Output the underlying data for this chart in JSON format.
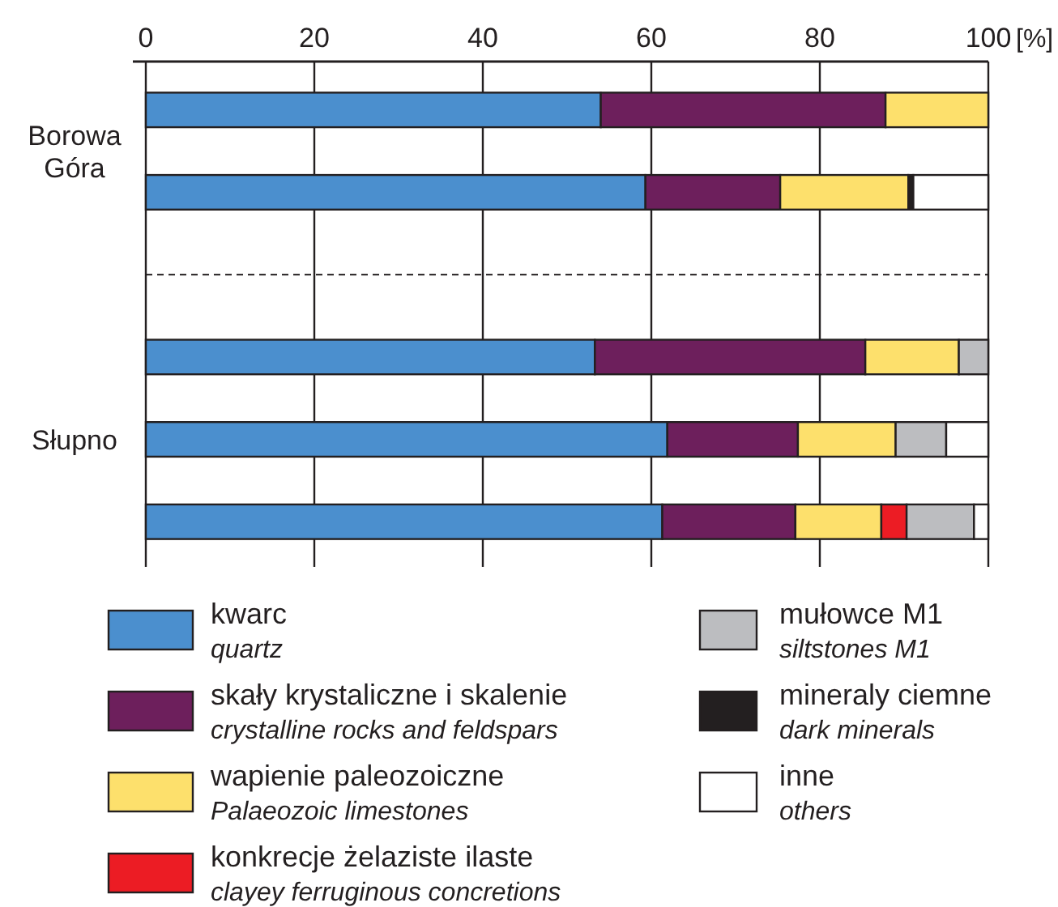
{
  "chart_data": {
    "type": "bar",
    "orientation": "horizontal",
    "stacked": true,
    "xlabel": "[%]",
    "xlim": [
      0,
      100
    ],
    "xticks": [
      0,
      20,
      40,
      60,
      80,
      100
    ],
    "grid": "x",
    "legend": "bottom",
    "categories": [
      null,
      null,
      null,
      null,
      null,
      null
    ],
    "annotations": [
      "Borowa\nGóra",
      "Słupno"
    ],
    "series": [
      {
        "name": "kwarc\nquartz",
        "color": "#4b8fce",
        "values": [
          54,
          59.3,
          null,
          53.3,
          61.9,
          61.3
        ]
      },
      {
        "name": "skały krystaliczne i skalenie\ncrystalline rocks and feldspars",
        "color": "#6d1f5c",
        "values": [
          33.8,
          16,
          null,
          32.1,
          15.5,
          15.8
        ]
      },
      {
        "name": "wapienie paleozoiczne\nPalaeozoic limestones",
        "color": "#fde06c",
        "values": [
          12.2,
          15.2,
          null,
          11.1,
          11.6,
          10.2
        ]
      },
      {
        "name": "konkrecje żelaziste ilaste\nclayey ferruginous concretions",
        "color": "#ec1c24",
        "values": [
          0,
          0,
          null,
          0,
          0,
          3
        ]
      },
      {
        "name": "mułowce M1\nsiltstones M1",
        "color": "#bcbdc0",
        "values": [
          0,
          0,
          null,
          3.5,
          6,
          8
        ]
      },
      {
        "name": "mineraly ciemne\ndark minerals",
        "color": "#231f20",
        "values": [
          0,
          0.6,
          null,
          0,
          0,
          0
        ]
      },
      {
        "name": "inne\nothers",
        "color": "#ffffff",
        "values": [
          0,
          8.9,
          null,
          0,
          5,
          1.7
        ]
      }
    ]
  }
}
